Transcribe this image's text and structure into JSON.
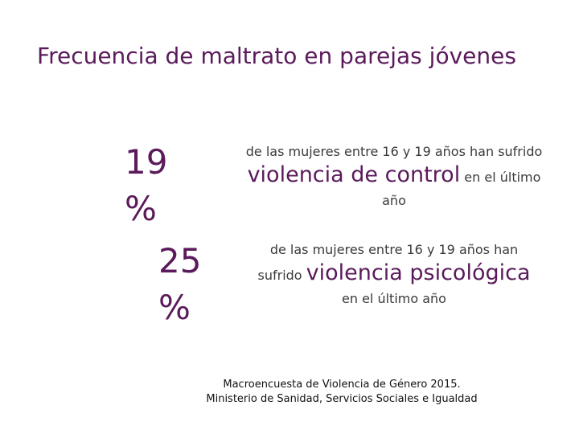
{
  "slide": {
    "title": "Frecuencia de maltrato en parejas jóvenes",
    "stats": [
      {
        "number": "19",
        "percent": "%",
        "line1": "de las mujeres entre 16 y 19 años han sufrido",
        "emphasis": "violencia de control",
        "after_emphasis": "en el último",
        "line3": "año"
      },
      {
        "number": "25",
        "percent": "%",
        "line1": "de las mujeres entre 16 y 19 años han",
        "before_emphasis": "sufrido",
        "emphasis": "violencia psicológica",
        "line3": "en el último año"
      }
    ],
    "source": {
      "line1": "Macroencuesta de Violencia de Género 2015.",
      "line2": "Ministerio de Sanidad, Servicios Sociales e Igualdad"
    },
    "colors": {
      "accent": "#5b1a5b",
      "text": "#3a3a3a"
    }
  }
}
